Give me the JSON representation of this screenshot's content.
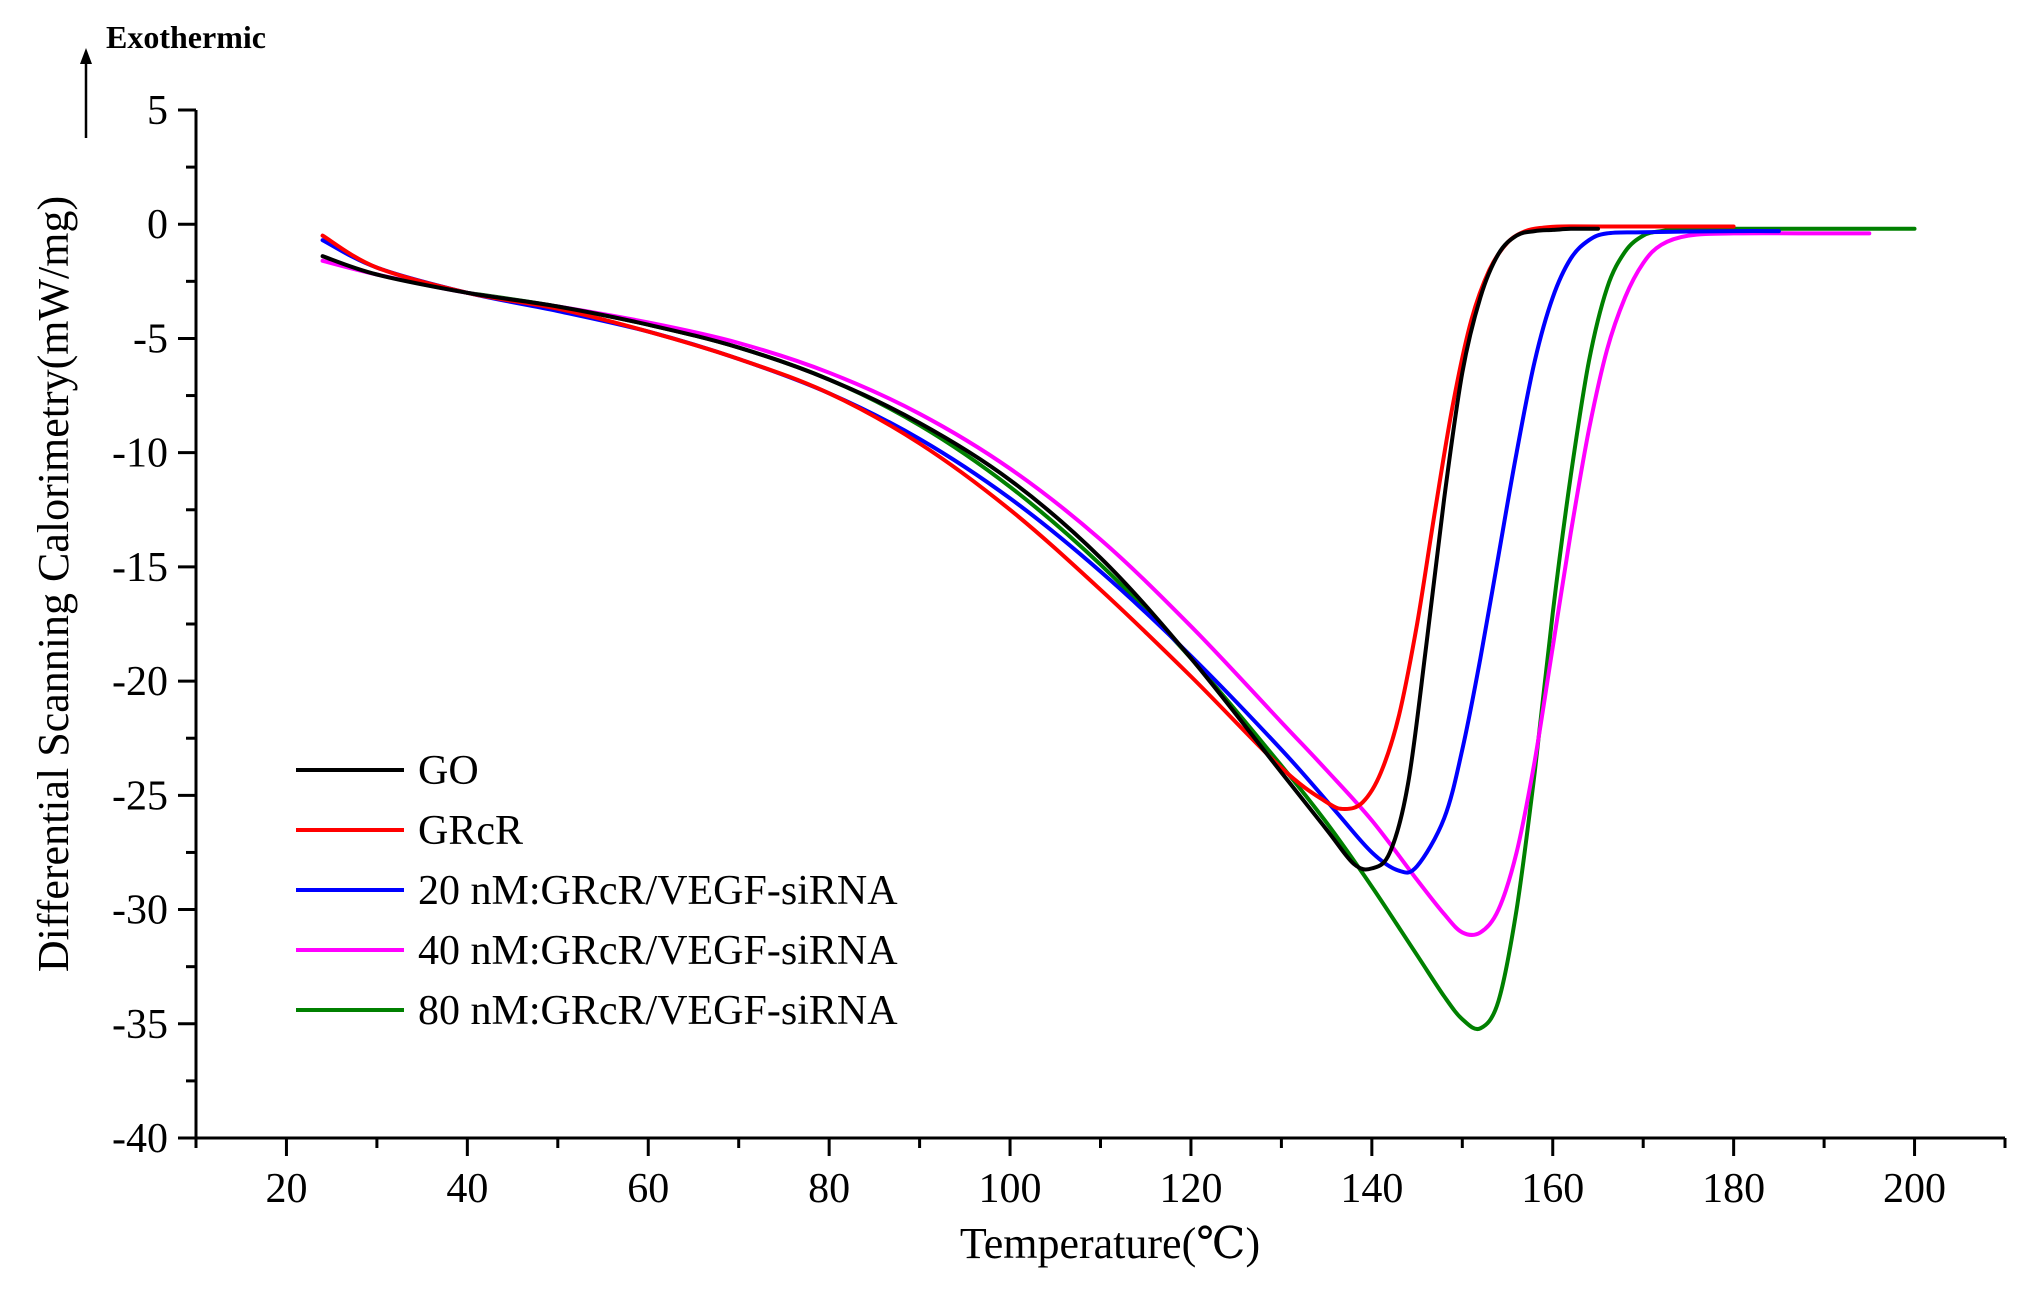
{
  "chart_data": {
    "type": "line",
    "title": "",
    "xlabel": "Temperature(℃)",
    "ylabel": "Differential Scanning Calorimetry(mW/mg)",
    "annotation": "Exothermic",
    "xlim": [
      10,
      210
    ],
    "ylim": [
      -40,
      5
    ],
    "xticks": [
      20,
      40,
      60,
      80,
      100,
      120,
      140,
      160,
      180,
      200
    ],
    "yticks": [
      5,
      0,
      -5,
      -10,
      -15,
      -20,
      -25,
      -30,
      -35,
      -40
    ],
    "legend_position": "bottom-left",
    "series": [
      {
        "name": "GO",
        "color": "#000000",
        "points": [
          [
            24,
            -1.4
          ],
          [
            30,
            -2.2
          ],
          [
            40,
            -3.0
          ],
          [
            50,
            -3.6
          ],
          [
            60,
            -4.4
          ],
          [
            70,
            -5.4
          ],
          [
            80,
            -6.8
          ],
          [
            90,
            -8.7
          ],
          [
            100,
            -11.2
          ],
          [
            110,
            -14.6
          ],
          [
            120,
            -19.0
          ],
          [
            130,
            -24.0
          ],
          [
            135,
            -26.5
          ],
          [
            138,
            -28.0
          ],
          [
            140,
            -28.2
          ],
          [
            142,
            -27.5
          ],
          [
            144,
            -24.5
          ],
          [
            146,
            -18.5
          ],
          [
            148,
            -12.0
          ],
          [
            150,
            -6.5
          ],
          [
            152,
            -3.2
          ],
          [
            154,
            -1.3
          ],
          [
            156,
            -0.5
          ],
          [
            158,
            -0.3
          ],
          [
            160,
            -0.25
          ],
          [
            162,
            -0.2
          ],
          [
            165,
            -0.2
          ]
        ]
      },
      {
        "name": "GRcR",
        "color": "#ff0000",
        "points": [
          [
            24,
            -0.5
          ],
          [
            30,
            -1.9
          ],
          [
            40,
            -3.0
          ],
          [
            50,
            -3.7
          ],
          [
            60,
            -4.7
          ],
          [
            70,
            -5.9
          ],
          [
            80,
            -7.4
          ],
          [
            90,
            -9.6
          ],
          [
            100,
            -12.5
          ],
          [
            110,
            -16.0
          ],
          [
            120,
            -19.8
          ],
          [
            130,
            -23.8
          ],
          [
            135,
            -25.3
          ],
          [
            137,
            -25.6
          ],
          [
            139,
            -25.3
          ],
          [
            141,
            -24.0
          ],
          [
            143,
            -21.5
          ],
          [
            145,
            -17.5
          ],
          [
            147,
            -12.5
          ],
          [
            149,
            -7.8
          ],
          [
            151,
            -4.2
          ],
          [
            153,
            -2.0
          ],
          [
            155,
            -0.8
          ],
          [
            157,
            -0.3
          ],
          [
            159,
            -0.15
          ],
          [
            161,
            -0.1
          ],
          [
            165,
            -0.1
          ],
          [
            180,
            -0.1
          ]
        ]
      },
      {
        "name": "20 nM:GRcR/VEGF-siRNA",
        "color": "#0000ff",
        "points": [
          [
            24,
            -0.7
          ],
          [
            30,
            -1.9
          ],
          [
            40,
            -3.0
          ],
          [
            50,
            -3.8
          ],
          [
            60,
            -4.7
          ],
          [
            70,
            -5.9
          ],
          [
            80,
            -7.4
          ],
          [
            90,
            -9.4
          ],
          [
            100,
            -12.0
          ],
          [
            110,
            -15.2
          ],
          [
            120,
            -18.9
          ],
          [
            130,
            -23.0
          ],
          [
            136,
            -25.7
          ],
          [
            140,
            -27.5
          ],
          [
            143,
            -28.3
          ],
          [
            145,
            -28.1
          ],
          [
            148,
            -26.0
          ],
          [
            150,
            -23.0
          ],
          [
            152,
            -19.0
          ],
          [
            154,
            -14.5
          ],
          [
            156,
            -10.0
          ],
          [
            158,
            -6.0
          ],
          [
            160,
            -3.2
          ],
          [
            162,
            -1.5
          ],
          [
            164,
            -0.7
          ],
          [
            166,
            -0.4
          ],
          [
            170,
            -0.35
          ],
          [
            180,
            -0.3
          ],
          [
            185,
            -0.3
          ]
        ]
      },
      {
        "name": "40 nM:GRcR/VEGF-siRNA",
        "color": "#ff00ff",
        "points": [
          [
            24,
            -1.6
          ],
          [
            30,
            -2.2
          ],
          [
            40,
            -3.0
          ],
          [
            50,
            -3.6
          ],
          [
            60,
            -4.3
          ],
          [
            70,
            -5.2
          ],
          [
            80,
            -6.5
          ],
          [
            90,
            -8.3
          ],
          [
            100,
            -10.7
          ],
          [
            110,
            -13.8
          ],
          [
            120,
            -17.6
          ],
          [
            130,
            -21.8
          ],
          [
            135,
            -23.9
          ],
          [
            140,
            -26.1
          ],
          [
            145,
            -28.7
          ],
          [
            148,
            -30.2
          ],
          [
            150,
            -31.0
          ],
          [
            152,
            -31.0
          ],
          [
            154,
            -30.0
          ],
          [
            156,
            -27.5
          ],
          [
            158,
            -23.5
          ],
          [
            160,
            -18.5
          ],
          [
            162,
            -13.5
          ],
          [
            164,
            -9.0
          ],
          [
            166,
            -5.5
          ],
          [
            168,
            -3.2
          ],
          [
            170,
            -1.7
          ],
          [
            172,
            -0.9
          ],
          [
            175,
            -0.5
          ],
          [
            180,
            -0.4
          ],
          [
            190,
            -0.4
          ],
          [
            195,
            -0.4
          ]
        ]
      },
      {
        "name": "80 nM:GRcR/VEGF-siRNA",
        "color": "#008000",
        "points": [
          [
            40,
            -3.0
          ],
          [
            50,
            -3.6
          ],
          [
            60,
            -4.4
          ],
          [
            70,
            -5.4
          ],
          [
            80,
            -6.8
          ],
          [
            90,
            -8.8
          ],
          [
            100,
            -11.5
          ],
          [
            110,
            -14.9
          ],
          [
            120,
            -19.0
          ],
          [
            130,
            -23.7
          ],
          [
            135,
            -26.2
          ],
          [
            140,
            -29.0
          ],
          [
            145,
            -32.0
          ],
          [
            148,
            -33.8
          ],
          [
            150,
            -34.8
          ],
          [
            152,
            -35.2
          ],
          [
            154,
            -34.0
          ],
          [
            156,
            -30.0
          ],
          [
            158,
            -24.0
          ],
          [
            160,
            -17.0
          ],
          [
            162,
            -11.0
          ],
          [
            164,
            -6.0
          ],
          [
            166,
            -2.8
          ],
          [
            168,
            -1.2
          ],
          [
            170,
            -0.5
          ],
          [
            172,
            -0.3
          ],
          [
            175,
            -0.2
          ],
          [
            180,
            -0.2
          ],
          [
            190,
            -0.2
          ],
          [
            200,
            -0.2
          ]
        ]
      }
    ]
  }
}
